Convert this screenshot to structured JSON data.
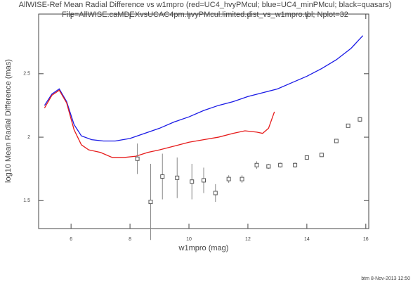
{
  "chart_data": {
    "type": "line",
    "title": [
      "AllWISE-Ref Mean Radial Difference vs w1mpro (red=UC4_hvyPMcul; blue=UC4_minPMcul; black=quasars)",
      "File=AllWISE.caMDEXvsUCAC4pm.hvyPMcul.limited.dist_vs_w1mpro.tbl; Nplot=32"
    ],
    "x_label": "w1mpro (mag)",
    "y_label": "log10 Mean Radial Difference (mas)",
    "footer": "btm  8-Nov-2013 12:50",
    "xlim": [
      4.9,
      16.1
    ],
    "ylim": [
      1.28,
      2.97
    ],
    "xticks": [
      6,
      8,
      10,
      12,
      14,
      16
    ],
    "yticks": [
      1.5,
      2,
      2.5
    ],
    "series": [
      {
        "color": "#1a1ae6",
        "x": [
          5.1,
          5.35,
          5.6,
          5.85,
          6.1,
          6.35,
          6.7,
          7.1,
          7.5,
          8.0,
          8.5,
          9.0,
          9.5,
          10,
          10.5,
          11,
          11.5,
          12,
          12.5,
          13,
          13.5,
          14,
          14.5,
          15,
          15.5,
          15.9
        ],
        "values": [
          2.25,
          2.34,
          2.38,
          2.28,
          2.1,
          2.01,
          1.98,
          1.97,
          1.97,
          1.99,
          2.03,
          2.07,
          2.12,
          2.16,
          2.21,
          2.25,
          2.28,
          2.32,
          2.35,
          2.38,
          2.43,
          2.48,
          2.54,
          2.61,
          2.7,
          2.8
        ]
      },
      {
        "color": "#e61a1a",
        "x": [
          5.1,
          5.35,
          5.6,
          5.85,
          6.1,
          6.35,
          6.6,
          7.0,
          7.4,
          7.8,
          8.2,
          8.6,
          9.0,
          9.5,
          10,
          10.5,
          11,
          11.5,
          11.9,
          12.3,
          12.5,
          12.7,
          12.9
        ],
        "values": [
          2.23,
          2.33,
          2.37,
          2.27,
          2.06,
          1.94,
          1.9,
          1.88,
          1.84,
          1.84,
          1.85,
          1.88,
          1.9,
          1.93,
          1.96,
          1.98,
          2.0,
          2.03,
          2.05,
          2.04,
          2.03,
          2.07,
          2.2
        ]
      }
    ],
    "points": {
      "color": "#555555",
      "x": [
        8.25,
        8.7,
        9.1,
        9.6,
        10.1,
        10.5,
        10.9,
        11.35,
        11.8,
        12.3,
        12.7,
        13.1,
        13.6,
        14.0,
        14.5,
        15.0,
        15.4,
        15.8
      ],
      "values": [
        1.83,
        1.49,
        1.69,
        1.68,
        1.65,
        1.66,
        1.56,
        1.67,
        1.67,
        1.78,
        1.77,
        1.78,
        1.78,
        1.84,
        1.86,
        1.97,
        2.09,
        2.14
      ],
      "errors": [
        0.12,
        0.3,
        0.18,
        0.16,
        0.14,
        0.1,
        0.07,
        0.03,
        0.03,
        0.03,
        0.02,
        0.02,
        0.02,
        0.01,
        0.01,
        0.01,
        0.01,
        0.02
      ]
    }
  }
}
